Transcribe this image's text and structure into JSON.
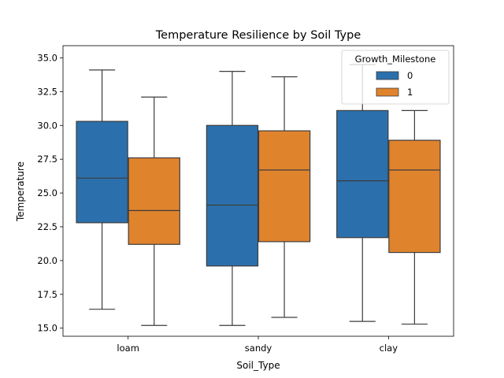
{
  "chart_data": {
    "type": "box",
    "title": "Temperature Resilience by Soil Type",
    "xlabel": "Soil_Type",
    "ylabel": "Temperature",
    "categories": [
      "loam",
      "sandy",
      "clay"
    ],
    "ylim": [
      14.4,
      35.9
    ],
    "yticks": [
      "15.0",
      "17.5",
      "20.0",
      "22.5",
      "25.0",
      "27.5",
      "30.0",
      "32.5",
      "35.0"
    ],
    "legend": {
      "title": "Growth_Milestone",
      "placement": "upper right"
    },
    "series": [
      {
        "name": "0",
        "color": "#2b70ac",
        "boxes": [
          {
            "min": 16.4,
            "q1": 22.8,
            "median": 26.1,
            "q3": 30.3,
            "max": 34.1
          },
          {
            "min": 15.2,
            "q1": 19.6,
            "median": 24.1,
            "q3": 30.0,
            "max": 34.0
          },
          {
            "min": 15.5,
            "q1": 21.7,
            "median": 25.9,
            "q3": 31.1,
            "max": 34.5
          }
        ]
      },
      {
        "name": "1",
        "color": "#e0832d",
        "boxes": [
          {
            "min": 15.2,
            "q1": 21.2,
            "median": 23.7,
            "q3": 27.6,
            "max": 32.1
          },
          {
            "min": 15.8,
            "q1": 21.4,
            "median": 26.7,
            "q3": 29.6,
            "max": 33.6
          },
          {
            "min": 15.3,
            "q1": 20.6,
            "median": 26.7,
            "q3": 28.9,
            "max": 31.1
          }
        ]
      }
    ]
  }
}
